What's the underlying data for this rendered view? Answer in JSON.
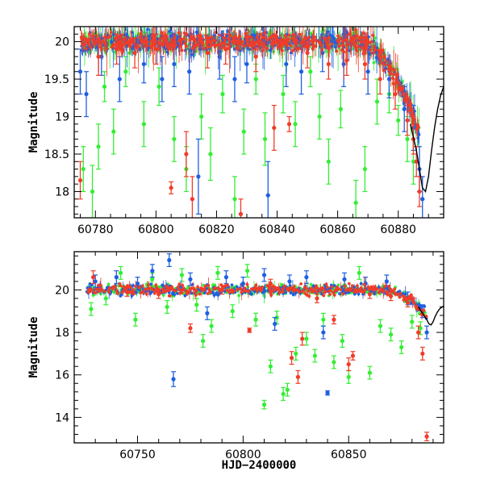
{
  "chart_data": [
    {
      "type": "scatter",
      "panel": "top",
      "xlabel": "",
      "ylabel": "Magnitude",
      "xlim": [
        60773,
        60895
      ],
      "ylim": [
        20.2,
        17.65
      ],
      "y_inverted": true,
      "x_ticks": [
        60780,
        60800,
        60820,
        60840,
        60860,
        60880
      ],
      "y_ticks": [
        18,
        18.5,
        19,
        19.5,
        20
      ],
      "x_tick_labels": [
        "60780",
        "60800",
        "60820",
        "60840",
        "60860",
        "60880"
      ],
      "y_tick_labels": [
        "18",
        "18.5",
        "19",
        "19.5",
        "20"
      ],
      "grid": false,
      "model_curve": {
        "x": [
          60884,
          60886,
          60888,
          60889,
          60890,
          60891,
          60892,
          60893,
          60894,
          60895
        ],
        "y": [
          18.9,
          18.55,
          18.05,
          18.0,
          18.2,
          18.55,
          18.85,
          19.1,
          19.28,
          19.4
        ]
      },
      "series": [
        {
          "color": "#33ee33",
          "points": [
            {
              "x": 60776,
              "y": 18.3,
              "e": 0.3
            },
            {
              "x": 60779,
              "y": 18.0,
              "e": 0.35
            },
            {
              "x": 60781,
              "y": 18.6,
              "e": 0.3
            },
            {
              "x": 60783,
              "y": 19.4,
              "e": 0.2
            },
            {
              "x": 60786,
              "y": 18.8,
              "e": 0.3
            },
            {
              "x": 60790,
              "y": 19.6,
              "e": 0.2
            },
            {
              "x": 60796,
              "y": 18.9,
              "e": 0.3
            },
            {
              "x": 60801,
              "y": 19.4,
              "e": 0.25
            },
            {
              "x": 60806,
              "y": 18.7,
              "e": 0.3
            },
            {
              "x": 60810,
              "y": 18.3,
              "e": 0.3
            },
            {
              "x": 60815,
              "y": 19.0,
              "e": 0.3
            },
            {
              "x": 60818,
              "y": 18.5,
              "e": 0.35
            },
            {
              "x": 60822,
              "y": 19.3,
              "e": 0.25
            },
            {
              "x": 60826,
              "y": 17.9,
              "e": 0.3
            },
            {
              "x": 60829,
              "y": 18.8,
              "e": 0.3
            },
            {
              "x": 60833,
              "y": 19.5,
              "e": 0.2
            },
            {
              "x": 60836,
              "y": 18.7,
              "e": 0.35
            },
            {
              "x": 60842,
              "y": 19.3,
              "e": 0.25
            },
            {
              "x": 60846,
              "y": 18.9,
              "e": 0.3
            },
            {
              "x": 60851,
              "y": 19.6,
              "e": 0.2
            },
            {
              "x": 60854,
              "y": 19.0,
              "e": 0.3
            },
            {
              "x": 60857,
              "y": 18.4,
              "e": 0.3
            },
            {
              "x": 60861,
              "y": 19.1,
              "e": 0.25
            },
            {
              "x": 60866,
              "y": 17.85,
              "e": 0.3
            },
            {
              "x": 60869,
              "y": 18.3,
              "e": 0.3
            },
            {
              "x": 60873,
              "y": 19.2,
              "e": 0.3
            },
            {
              "x": 60877,
              "y": 19.3,
              "e": 0.25
            },
            {
              "x": 60880,
              "y": 18.95,
              "e": 0.2
            },
            {
              "x": 60883,
              "y": 18.7,
              "e": 0.3
            },
            {
              "x": 60885,
              "y": 18.4,
              "e": 0.3
            }
          ]
        },
        {
          "color": "#1e5fe0",
          "points": [
            {
              "x": 60775,
              "y": 19.6,
              "e": 0.3
            },
            {
              "x": 60777,
              "y": 19.3,
              "e": 0.3
            },
            {
              "x": 60782,
              "y": 19.8,
              "e": 0.25
            },
            {
              "x": 60788,
              "y": 19.5,
              "e": 0.3
            },
            {
              "x": 60796,
              "y": 19.7,
              "e": 0.25
            },
            {
              "x": 60802,
              "y": 19.5,
              "e": 0.3
            },
            {
              "x": 60806,
              "y": 19.7,
              "e": 0.3
            },
            {
              "x": 60811,
              "y": 19.6,
              "e": 0.3
            },
            {
              "x": 60814,
              "y": 18.2,
              "e": 0.5
            },
            {
              "x": 60821,
              "y": 19.8,
              "e": 0.3
            },
            {
              "x": 60826,
              "y": 19.5,
              "e": 0.3
            },
            {
              "x": 60830,
              "y": 19.7,
              "e": 0.25
            },
            {
              "x": 60837,
              "y": 17.95,
              "e": 0.45
            },
            {
              "x": 60843,
              "y": 19.7,
              "e": 0.3
            },
            {
              "x": 60848,
              "y": 19.6,
              "e": 0.3
            },
            {
              "x": 60855,
              "y": 19.85,
              "e": 0.25
            },
            {
              "x": 60862,
              "y": 19.7,
              "e": 0.3
            },
            {
              "x": 60870,
              "y": 19.6,
              "e": 0.3
            },
            {
              "x": 60877,
              "y": 19.5,
              "e": 0.25
            },
            {
              "x": 60882,
              "y": 19.1,
              "e": 0.3
            },
            {
              "x": 60885,
              "y": 18.85,
              "e": 0.3
            },
            {
              "x": 60887,
              "y": 18.3,
              "e": 0.3
            },
            {
              "x": 60888,
              "y": 17.9,
              "e": 0.3
            }
          ]
        },
        {
          "color": "#f03c28",
          "points": [
            {
              "x": 60775,
              "y": 18.15,
              "e": 0.25
            },
            {
              "x": 60781,
              "y": 19.8,
              "e": 0.25
            },
            {
              "x": 60787,
              "y": 19.9,
              "e": 0.2
            },
            {
              "x": 60793,
              "y": 19.85,
              "e": 0.2
            },
            {
              "x": 60800,
              "y": 19.9,
              "e": 0.2
            },
            {
              "x": 60805,
              "y": 18.05,
              "e": 0.08
            },
            {
              "x": 60810,
              "y": 18.5,
              "e": 0.3
            },
            {
              "x": 60812,
              "y": 17.9,
              "e": 0.3
            },
            {
              "x": 60817,
              "y": 19.85,
              "e": 0.2
            },
            {
              "x": 60823,
              "y": 19.9,
              "e": 0.2
            },
            {
              "x": 60828,
              "y": 17.7,
              "e": 0.2
            },
            {
              "x": 60833,
              "y": 19.8,
              "e": 0.2
            },
            {
              "x": 60839,
              "y": 18.85,
              "e": 0.3
            },
            {
              "x": 60844,
              "y": 18.9,
              "e": 0.1
            },
            {
              "x": 60850,
              "y": 19.85,
              "e": 0.2
            },
            {
              "x": 60857,
              "y": 19.7,
              "e": 0.2
            },
            {
              "x": 60863,
              "y": 19.75,
              "e": 0.2
            },
            {
              "x": 60869,
              "y": 19.7,
              "e": 0.2
            },
            {
              "x": 60874,
              "y": 19.5,
              "e": 0.2
            },
            {
              "x": 60879,
              "y": 19.3,
              "e": 0.2
            },
            {
              "x": 60883,
              "y": 18.95,
              "e": 0.2
            },
            {
              "x": 60885,
              "y": 18.7,
              "e": 0.2
            },
            {
              "x": 60886,
              "y": 18.4,
              "e": 0.2
            },
            {
              "x": 60887,
              "y": 18.0,
              "e": 0.2
            }
          ]
        }
      ]
    },
    {
      "type": "scatter",
      "panel": "bottom",
      "xlabel": "HJD−2400000",
      "ylabel": "Magnitude",
      "xlim": [
        60720,
        60895
      ],
      "ylim": [
        21.8,
        12.8
      ],
      "y_inverted": true,
      "x_ticks": [
        60750,
        60800,
        60850
      ],
      "y_ticks": [
        14,
        16,
        18,
        20
      ],
      "x_tick_labels": [
        "60750",
        "60800",
        "60850"
      ],
      "y_tick_labels": [
        "14",
        "16",
        "18",
        "20"
      ],
      "grid": false,
      "model_curve": {
        "x": [
          60883,
          60885,
          60887,
          60888,
          60889,
          60890,
          60891,
          60892,
          60893,
          60895
        ],
        "y": [
          19.2,
          18.9,
          18.6,
          18.4,
          18.35,
          18.5,
          18.75,
          18.95,
          19.1,
          19.25
        ]
      },
      "series": [
        {
          "color": "#33ee33",
          "points": [
            {
              "x": 60728,
              "y": 19.1,
              "e": 0.3
            },
            {
              "x": 60735,
              "y": 19.6,
              "e": 0.3
            },
            {
              "x": 60742,
              "y": 20.8,
              "e": 0.3
            },
            {
              "x": 60749,
              "y": 18.6,
              "e": 0.3
            },
            {
              "x": 60757,
              "y": 20.5,
              "e": 0.3
            },
            {
              "x": 60764,
              "y": 19.2,
              "e": 0.3
            },
            {
              "x": 60771,
              "y": 20.7,
              "e": 0.3
            },
            {
              "x": 60778,
              "y": 19.3,
              "e": 0.3
            },
            {
              "x": 60781,
              "y": 17.6,
              "e": 0.3
            },
            {
              "x": 60785,
              "y": 18.3,
              "e": 0.3
            },
            {
              "x": 60788,
              "y": 20.8,
              "e": 0.3
            },
            {
              "x": 60795,
              "y": 19.0,
              "e": 0.3
            },
            {
              "x": 60802,
              "y": 20.9,
              "e": 0.3
            },
            {
              "x": 60806,
              "y": 18.6,
              "e": 0.3
            },
            {
              "x": 60810,
              "y": 14.6,
              "e": 0.2
            },
            {
              "x": 60813,
              "y": 16.4,
              "e": 0.3
            },
            {
              "x": 60816,
              "y": 18.7,
              "e": 0.3
            },
            {
              "x": 60819,
              "y": 15.1,
              "e": 0.3
            },
            {
              "x": 60821,
              "y": 15.3,
              "e": 0.3
            },
            {
              "x": 60825,
              "y": 17.0,
              "e": 0.3
            },
            {
              "x": 60830,
              "y": 17.7,
              "e": 0.3
            },
            {
              "x": 60834,
              "y": 16.9,
              "e": 0.3
            },
            {
              "x": 60838,
              "y": 18.6,
              "e": 0.3
            },
            {
              "x": 60843,
              "y": 16.6,
              "e": 0.3
            },
            {
              "x": 60847,
              "y": 17.6,
              "e": 0.3
            },
            {
              "x": 60850,
              "y": 15.9,
              "e": 0.3
            },
            {
              "x": 60855,
              "y": 20.8,
              "e": 0.3
            },
            {
              "x": 60860,
              "y": 16.1,
              "e": 0.3
            },
            {
              "x": 60865,
              "y": 18.3,
              "e": 0.3
            },
            {
              "x": 60870,
              "y": 17.9,
              "e": 0.3
            },
            {
              "x": 60875,
              "y": 17.3,
              "e": 0.3
            },
            {
              "x": 60880,
              "y": 18.5,
              "e": 0.3
            },
            {
              "x": 60884,
              "y": 18.2,
              "e": 0.3
            }
          ]
        },
        {
          "color": "#1e5fe0",
          "points": [
            {
              "x": 60730,
              "y": 20.4,
              "e": 0.3
            },
            {
              "x": 60740,
              "y": 20.6,
              "e": 0.3
            },
            {
              "x": 60750,
              "y": 20.3,
              "e": 0.3
            },
            {
              "x": 60757,
              "y": 20.9,
              "e": 0.3
            },
            {
              "x": 60765,
              "y": 21.4,
              "e": 0.3
            },
            {
              "x": 60767,
              "y": 15.8,
              "e": 0.35
            },
            {
              "x": 60775,
              "y": 20.5,
              "e": 0.3
            },
            {
              "x": 60783,
              "y": 18.9,
              "e": 0.3
            },
            {
              "x": 60792,
              "y": 20.6,
              "e": 0.3
            },
            {
              "x": 60800,
              "y": 20.3,
              "e": 0.3
            },
            {
              "x": 60810,
              "y": 20.7,
              "e": 0.3
            },
            {
              "x": 60815,
              "y": 18.4,
              "e": 0.3
            },
            {
              "x": 60822,
              "y": 20.4,
              "e": 0.3
            },
            {
              "x": 60830,
              "y": 20.6,
              "e": 0.3
            },
            {
              "x": 60838,
              "y": 18.0,
              "e": 0.3
            },
            {
              "x": 60840,
              "y": 15.15,
              "e": 0.1
            },
            {
              "x": 60848,
              "y": 20.5,
              "e": 0.3
            },
            {
              "x": 60858,
              "y": 20.3,
              "e": 0.3
            },
            {
              "x": 60868,
              "y": 20.4,
              "e": 0.3
            },
            {
              "x": 60878,
              "y": 19.6,
              "e": 0.3
            },
            {
              "x": 60885,
              "y": 19.0,
              "e": 0.3
            },
            {
              "x": 60887,
              "y": 18.0,
              "e": 0.3
            }
          ]
        },
        {
          "color": "#f03c28",
          "points": [
            {
              "x": 60729,
              "y": 20.6,
              "e": 0.3
            },
            {
              "x": 60745,
              "y": 19.9,
              "e": 0.2
            },
            {
              "x": 60760,
              "y": 19.8,
              "e": 0.2
            },
            {
              "x": 60775,
              "y": 18.2,
              "e": 0.2
            },
            {
              "x": 60790,
              "y": 20.0,
              "e": 0.2
            },
            {
              "x": 60803,
              "y": 18.1,
              "e": 0.1
            },
            {
              "x": 60813,
              "y": 20.3,
              "e": 0.2
            },
            {
              "x": 60823,
              "y": 16.8,
              "e": 0.3
            },
            {
              "x": 60826,
              "y": 15.9,
              "e": 0.3
            },
            {
              "x": 60828,
              "y": 17.7,
              "e": 0.3
            },
            {
              "x": 60835,
              "y": 19.6,
              "e": 0.2
            },
            {
              "x": 60843,
              "y": 18.6,
              "e": 0.2
            },
            {
              "x": 60850,
              "y": 16.5,
              "e": 0.3
            },
            {
              "x": 60852,
              "y": 16.9,
              "e": 0.2
            },
            {
              "x": 60860,
              "y": 19.8,
              "e": 0.2
            },
            {
              "x": 60870,
              "y": 19.7,
              "e": 0.2
            },
            {
              "x": 60878,
              "y": 19.4,
              "e": 0.2
            },
            {
              "x": 60883,
              "y": 18.0,
              "e": 0.3
            },
            {
              "x": 60885,
              "y": 17.0,
              "e": 0.3
            },
            {
              "x": 60887,
              "y": 13.1,
              "e": 0.2
            }
          ]
        }
      ]
    }
  ]
}
